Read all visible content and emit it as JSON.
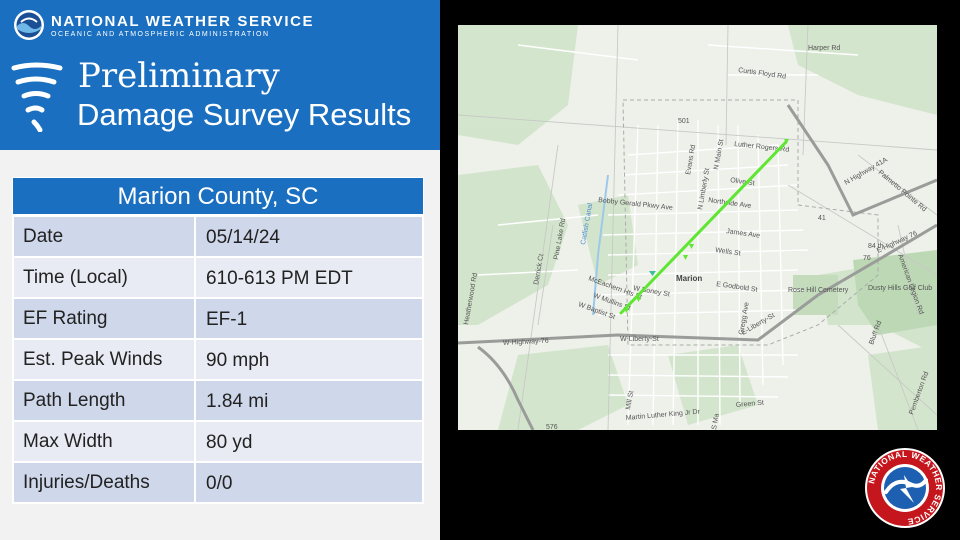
{
  "header": {
    "agency": "NATIONAL WEATHER SERVICE",
    "agency_sub": "OCEANIC AND ATMOSPHERIC ADMINISTRATION",
    "title_line1": "Preliminary",
    "title_line2": "Damage Survey Results",
    "color": "#1a6fc0"
  },
  "survey": {
    "county": "Marion County, SC",
    "rows": [
      {
        "label": "Date",
        "value": "05/14/24"
      },
      {
        "label": "Time (Local)",
        "value": "610-613 PM EDT"
      },
      {
        "label": "EF Rating",
        "value": "EF-1"
      },
      {
        "label": "Est. Peak Winds",
        "value": "90 mph"
      },
      {
        "label": "Path Length",
        "value": "1.84 mi"
      },
      {
        "label": "Max Width",
        "value": "80 yd"
      },
      {
        "label": "Injuries/Deaths",
        "value": "0/0"
      }
    ]
  },
  "map": {
    "town_label": "Marion",
    "track_color": "#5ee632",
    "labels": {
      "harper": "Harper Rd",
      "curtis": "Curtis Floyd Rd",
      "r501": "501",
      "luther": "Luther Rogers Rd",
      "olive": "Olive St",
      "northside": "Northside Ave",
      "palmetto": "Palmetto Pointe Rd",
      "hwy41a": "N Highway 41A",
      "r41": "41",
      "bobby": "Bobby Gerald Pkwy Ave",
      "james": "James Ave",
      "wells": "Wells St",
      "hwy76e": "E-Highway 76",
      "catfish": "Catfish Canal",
      "pinelake": "Pine Lake Rd",
      "derrick": "Derrick Ct",
      "mceachern": "McEachern Hts St",
      "boney": "W Boney St",
      "mullins": "W Mullins St",
      "baptist": "W Baptist St",
      "godbold": "E Godbold St",
      "rosehill": "Rose Hill Cemetery",
      "dusty": "Dusty Hills Golf Club",
      "liberty": "E-Liberty-St",
      "r76": "76",
      "heatherwood": "Heatherwood Rd",
      "hwy76w": "W-Highway-76",
      "wliberty": "W-Liberty-St",
      "gregg": "Gregg Ave",
      "bluff": "Bluff Rd",
      "mill": "Mill St",
      "mlk": "Martin Luther King Jr Dr",
      "green": "Green St",
      "pemberton": "Pemberton Rd",
      "evans": "Evans Rd",
      "nmain": "N Main St",
      "nlimberly": "N Limberly St",
      "american": "American Legion Rd",
      "r84": "84 th",
      "r576": "576",
      "smain": "S Ma"
    }
  },
  "logos": {
    "nws_ring_text": "NATIONAL WEATHER SERVICE"
  }
}
